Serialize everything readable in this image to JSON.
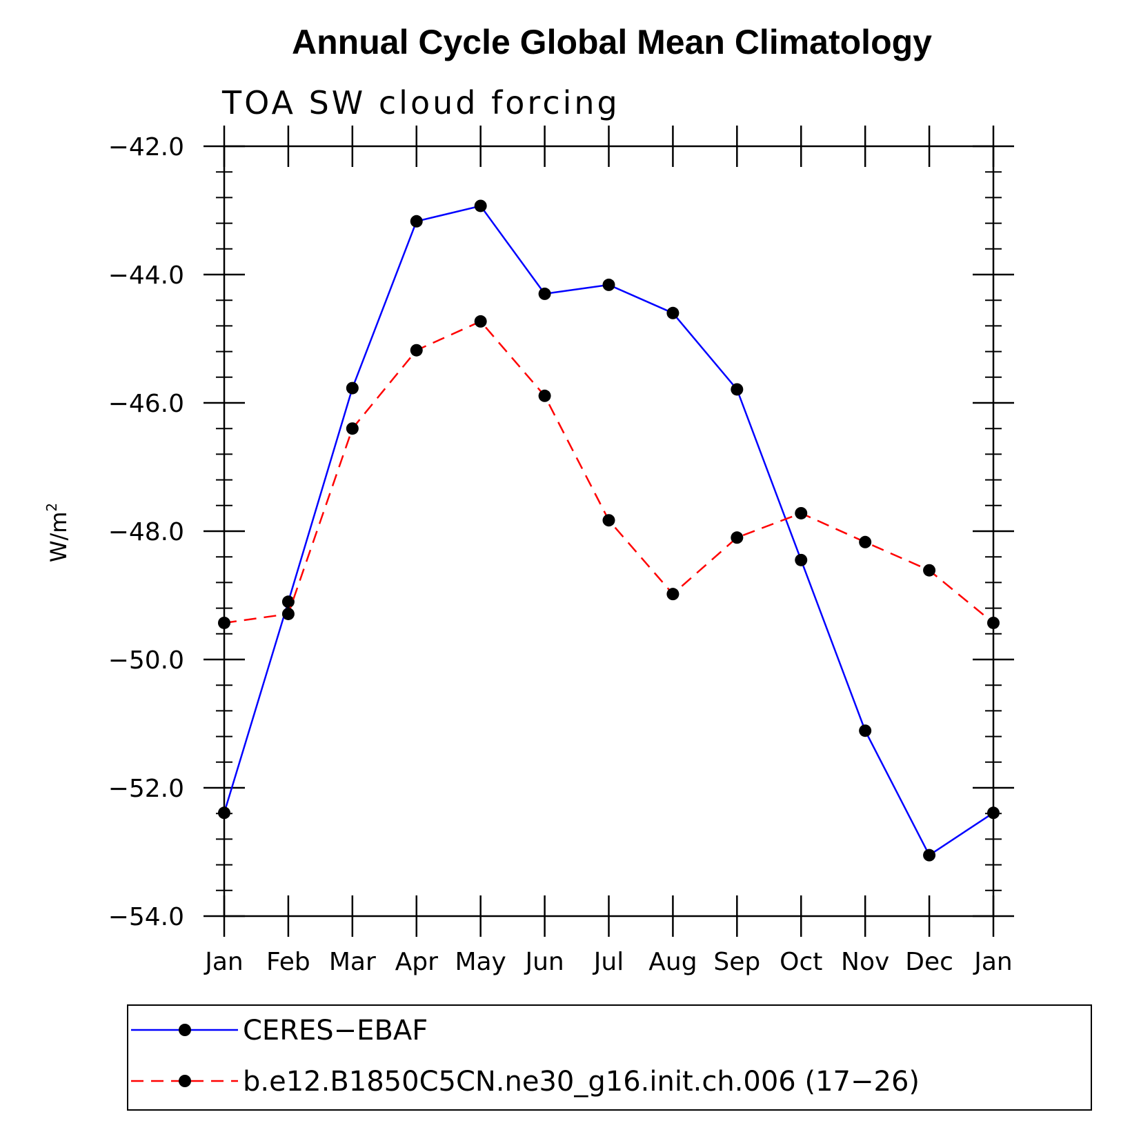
{
  "chart_data": {
    "type": "line",
    "title": "Annual Cycle Global Mean Climatology",
    "subtitle": "TOA SW cloud forcing",
    "ylabel": "W/m",
    "ylabel_sup": "2",
    "ylim": [
      -54,
      -42
    ],
    "yticks": [
      -54,
      -52,
      -50,
      -48,
      -46,
      -44,
      -42
    ],
    "ytick_labels": [
      "−54.0",
      "−52.0",
      "−50.0",
      "−48.0",
      "−46.0",
      "−44.0",
      "−42.0"
    ],
    "categories": [
      "Jan",
      "Feb",
      "Mar",
      "Apr",
      "May",
      "Jun",
      "Jul",
      "Aug",
      "Sep",
      "Oct",
      "Nov",
      "Dec",
      "Jan"
    ],
    "grid": false,
    "legend_position": "bottom",
    "series": [
      {
        "name": "CERES−EBAF",
        "color": "#0000ff",
        "dash": "solid",
        "marker": "filled-circle",
        "values": [
          -52.39,
          -49.1,
          -45.77,
          -43.17,
          -42.93,
          -44.3,
          -44.16,
          -44.6,
          -45.79,
          -48.45,
          -51.11,
          -53.05,
          -52.39
        ]
      },
      {
        "name": "b.e12.B1850C5CN.ne30_g16.init.ch.006 (17−26)",
        "color": "#ff0000",
        "dash": "dashed",
        "marker": "filled-circle",
        "values": [
          -49.43,
          -49.29,
          -46.4,
          -45.18,
          -44.73,
          -45.89,
          -47.83,
          -48.98,
          -48.1,
          -47.72,
          -48.17,
          -48.61,
          -49.43
        ]
      }
    ]
  }
}
